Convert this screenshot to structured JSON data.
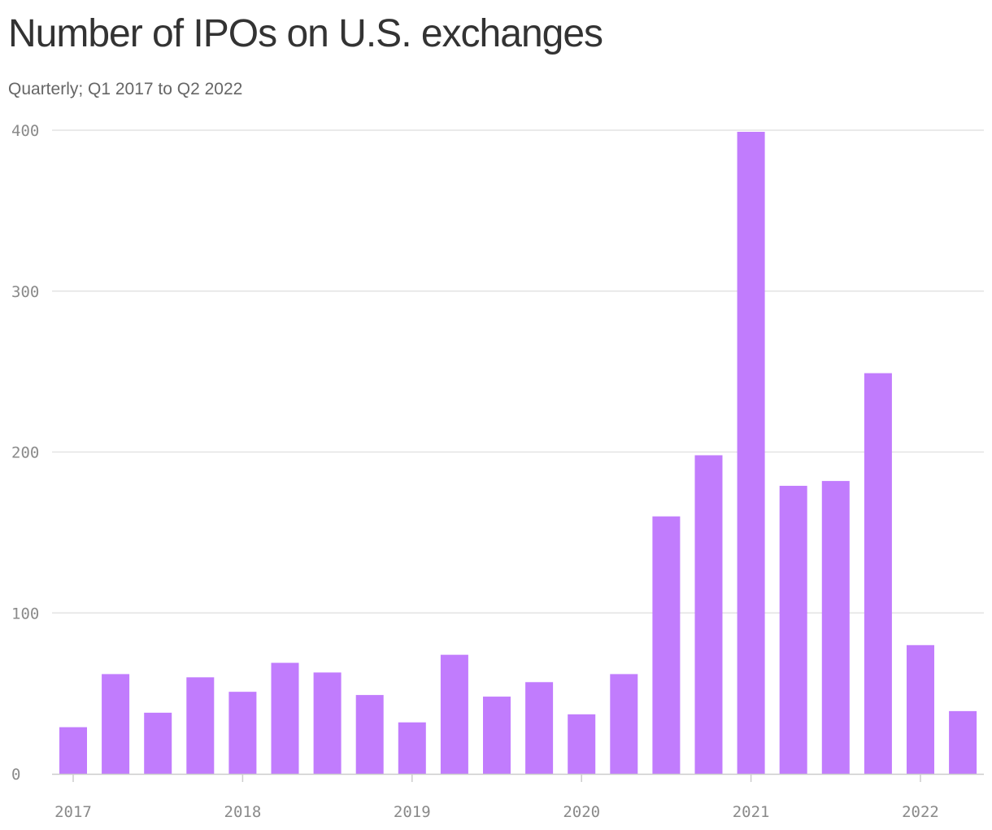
{
  "chart_data": {
    "type": "bar",
    "title": "Number of IPOs on U.S. exchanges",
    "subtitle": "Quarterly; Q1 2017 to Q2 2022",
    "categories": [
      "Q1 2017",
      "Q2 2017",
      "Q3 2017",
      "Q4 2017",
      "Q1 2018",
      "Q2 2018",
      "Q3 2018",
      "Q4 2018",
      "Q1 2019",
      "Q2 2019",
      "Q3 2019",
      "Q4 2019",
      "Q1 2020",
      "Q2 2020",
      "Q3 2020",
      "Q4 2020",
      "Q1 2021",
      "Q2 2021",
      "Q3 2021",
      "Q4 2021",
      "Q1 2022",
      "Q2 2022"
    ],
    "values": [
      29,
      62,
      38,
      60,
      51,
      69,
      63,
      49,
      32,
      74,
      48,
      57,
      37,
      62,
      160,
      198,
      399,
      179,
      182,
      249,
      80,
      39
    ],
    "ylim": [
      0,
      400
    ],
    "yticks": [
      "0",
      "100",
      "200",
      "300",
      "400"
    ],
    "xticks": [
      "2017",
      "2018",
      "2019",
      "2020",
      "2021",
      "2022"
    ],
    "xlabel": "",
    "ylabel": "",
    "grid": true,
    "bar_color": "#c17cfd",
    "grid_color": "#e3e3e3"
  }
}
